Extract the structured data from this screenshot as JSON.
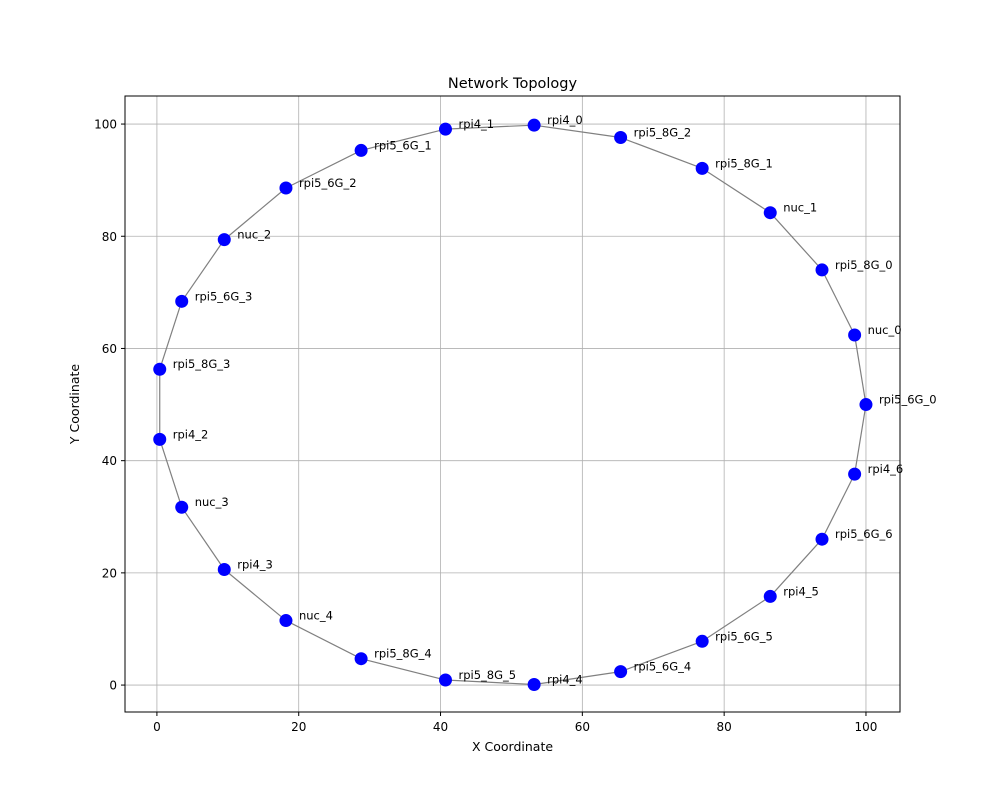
{
  "chart_data": {
    "type": "scatter",
    "title": "Network Topology",
    "xlabel": "X Coordinate",
    "ylabel": "Y Coordinate",
    "xlim": [
      -4.5,
      104.8
    ],
    "ylim": [
      -4.8,
      105
    ],
    "xticks": [
      0,
      20,
      40,
      60,
      80,
      100
    ],
    "yticks": [
      0,
      20,
      40,
      60,
      80,
      100
    ],
    "grid": true,
    "point_color": "#0000ff",
    "edge_color": "#808080",
    "nodes": [
      {
        "name": "rpi5_6G_0",
        "x": 100.0,
        "y": 50.0
      },
      {
        "name": "nuc_0",
        "x": 98.4,
        "y": 62.4
      },
      {
        "name": "rpi5_8G_0",
        "x": 93.8,
        "y": 74.0
      },
      {
        "name": "nuc_1",
        "x": 86.5,
        "y": 84.2
      },
      {
        "name": "rpi5_8G_1",
        "x": 76.9,
        "y": 92.1
      },
      {
        "name": "rpi5_8G_2",
        "x": 65.4,
        "y": 97.6
      },
      {
        "name": "rpi4_0",
        "x": 53.2,
        "y": 99.8
      },
      {
        "name": "rpi4_1",
        "x": 40.7,
        "y": 99.1
      },
      {
        "name": "rpi5_6G_1",
        "x": 28.8,
        "y": 95.3
      },
      {
        "name": "rpi5_6G_2",
        "x": 18.2,
        "y": 88.6
      },
      {
        "name": "nuc_2",
        "x": 9.5,
        "y": 79.4
      },
      {
        "name": "rpi5_6G_3",
        "x": 3.5,
        "y": 68.4
      },
      {
        "name": "rpi5_8G_3",
        "x": 0.4,
        "y": 56.3
      },
      {
        "name": "rpi4_2",
        "x": 0.4,
        "y": 43.8
      },
      {
        "name": "nuc_3",
        "x": 3.5,
        "y": 31.7
      },
      {
        "name": "rpi4_3",
        "x": 9.5,
        "y": 20.6
      },
      {
        "name": "nuc_4",
        "x": 18.2,
        "y": 11.5
      },
      {
        "name": "rpi5_8G_4",
        "x": 28.8,
        "y": 4.7
      },
      {
        "name": "rpi5_8G_5",
        "x": 40.7,
        "y": 0.9
      },
      {
        "name": "rpi4_4",
        "x": 53.2,
        "y": 0.1
      },
      {
        "name": "rpi5_6G_4",
        "x": 65.4,
        "y": 2.4
      },
      {
        "name": "rpi5_6G_5",
        "x": 76.9,
        "y": 7.8
      },
      {
        "name": "rpi4_5",
        "x": 86.5,
        "y": 15.8
      },
      {
        "name": "rpi5_6G_6",
        "x": 93.8,
        "y": 26.0
      },
      {
        "name": "rpi4_6",
        "x": 98.4,
        "y": 37.6
      }
    ]
  }
}
